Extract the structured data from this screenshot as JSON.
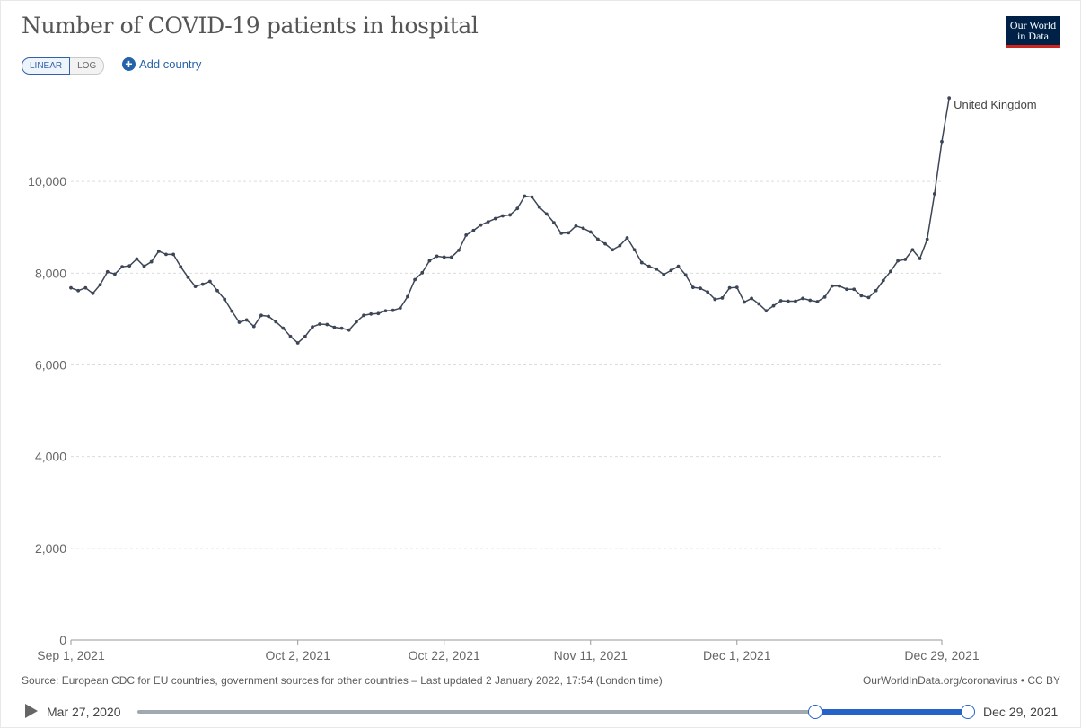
{
  "title": "Number of COVID-19 patients in hospital",
  "logo": {
    "line1": "Our World",
    "line2": "in Data"
  },
  "controls": {
    "linear": "LINEAR",
    "log": "LOG",
    "add_country": "Add country"
  },
  "footer": {
    "source": "Source: European CDC for EU countries, government sources for other countries – Last updated 2 January 2022, 17:54 (London time)",
    "url": "OurWorldInData.org/coronavirus • CC BY"
  },
  "timeline": {
    "start": "Mar 27, 2020",
    "end": "Dec 29, 2021",
    "selection_start_fraction": 0.815,
    "selection_end_fraction": 1.0
  },
  "colors": {
    "line": "#3d4657",
    "accent": "#2563c9",
    "logo_bg": "#002147",
    "logo_bar": "#ce261e"
  },
  "chart_data": {
    "type": "line",
    "title": "Number of COVID-19 patients in hospital",
    "x_tick_labels": [
      "Sep 1, 2021",
      "Oct 2, 2021",
      "Oct 22, 2021",
      "Nov 11, 2021",
      "Dec 1, 2021",
      "Dec 29, 2021"
    ],
    "x_tick_dates": [
      "2021-09-01",
      "2021-10-02",
      "2021-10-22",
      "2021-11-11",
      "2021-12-01",
      "2021-12-29"
    ],
    "y_ticks": [
      0,
      2000,
      4000,
      6000,
      8000,
      10000
    ],
    "y_tick_labels": [
      "0",
      "2,000",
      "4,000",
      "6,000",
      "8,000",
      "10,000"
    ],
    "ylim": [
      0,
      12000
    ],
    "xlim": [
      "2021-09-01",
      "2021-12-29"
    ],
    "grid": "horizontal dashed",
    "series": [
      {
        "name": "United Kingdom",
        "start_date": "2021-09-01",
        "values": [
          7680,
          7620,
          7680,
          7560,
          7750,
          8030,
          7980,
          8140,
          8160,
          8310,
          8150,
          8250,
          8480,
          8410,
          8410,
          8140,
          7910,
          7710,
          7760,
          7820,
          7620,
          7430,
          7170,
          6930,
          6980,
          6840,
          7080,
          7060,
          6940,
          6800,
          6620,
          6480,
          6620,
          6830,
          6890,
          6880,
          6820,
          6800,
          6760,
          6940,
          7080,
          7110,
          7120,
          7180,
          7190,
          7240,
          7490,
          7860,
          8010,
          8270,
          8370,
          8350,
          8350,
          8500,
          8830,
          8930,
          9050,
          9120,
          9190,
          9250,
          9270,
          9410,
          9680,
          9660,
          9440,
          9290,
          9100,
          8870,
          8880,
          9030,
          8980,
          8900,
          8740,
          8640,
          8510,
          8600,
          8770,
          8510,
          8230,
          8150,
          8090,
          7970,
          8060,
          8150,
          7960,
          7690,
          7670,
          7590,
          7430,
          7460,
          7680,
          7690,
          7370,
          7450,
          7330,
          7180,
          7290,
          7400,
          7390,
          7390,
          7450,
          7410,
          7380,
          7480,
          7720,
          7720,
          7650,
          7650,
          7510,
          7470,
          7620,
          7840,
          8040,
          8270,
          8300,
          8510,
          8320,
          8740,
          9730,
          10870,
          11820
        ]
      }
    ],
    "series_label": "United Kingdom"
  }
}
